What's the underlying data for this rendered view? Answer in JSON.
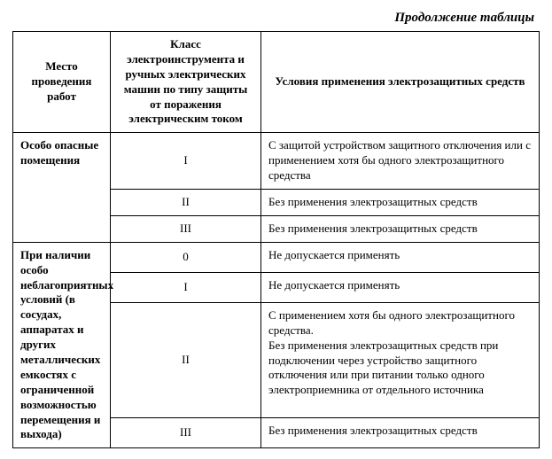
{
  "caption": "Продолжение таблицы",
  "headers": {
    "col1": "Место проведения работ",
    "col2": "Класс электроинструмента и ручных электрических машин по типу защиты от поражения электрическим током",
    "col3": "Условия применения электрозащитных средств"
  },
  "section1": {
    "label": "Особо опасные помещения",
    "rows": [
      {
        "cls": "I",
        "cond": "С защитой устройством защитного отключения или с применением хотя бы одного электрозащитного средства"
      },
      {
        "cls": "II",
        "cond": "Без применения электрозащитных средств"
      },
      {
        "cls": "III",
        "cond": "Без применения электрозащитных средств"
      }
    ]
  },
  "section2": {
    "label": "При наличии особо неблагоприятных условий (в сосудах, аппаратах и других металлических емкостях с ограниченной возможностью перемещения и выхода)",
    "rows": [
      {
        "cls": "0",
        "cond": "Не допускается применять"
      },
      {
        "cls": "I",
        "cond": "Не допускается применять"
      },
      {
        "cls": "II",
        "cond": "С применением хотя бы одного электрозащитного средства.\nБез применения электрозащитных средств при подключении через устройство защитного отключения или при питании только одного электроприемника от отдельного источника"
      },
      {
        "cls": "III",
        "cond": "Без применения электрозащитных средств"
      }
    ]
  }
}
